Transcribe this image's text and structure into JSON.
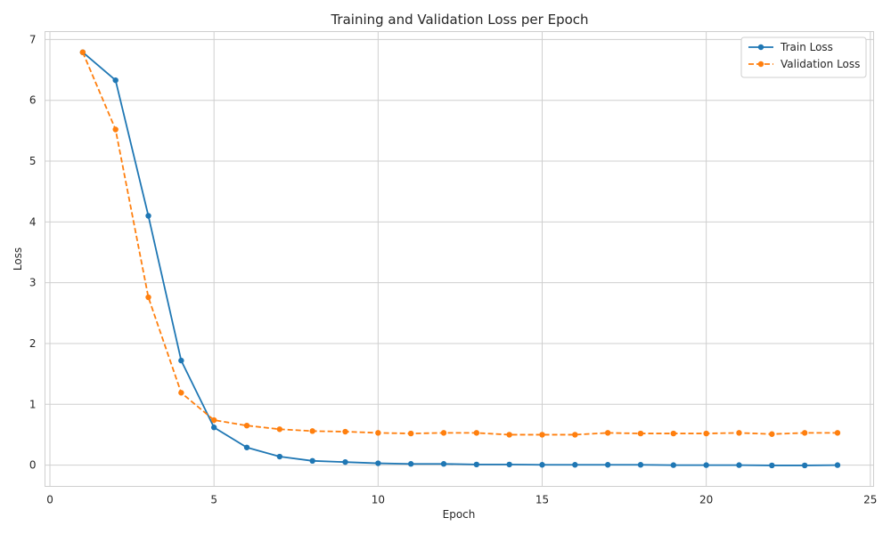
{
  "chart_data": {
    "type": "line",
    "title": "Training and Validation Loss per Epoch",
    "xlabel": "Epoch",
    "ylabel": "Loss",
    "xlim": [
      -0.15,
      25.1
    ],
    "ylim": [
      -0.35,
      7.13
    ],
    "xticks": [
      0,
      5,
      10,
      15,
      20,
      25
    ],
    "yticks": [
      0,
      1,
      2,
      3,
      4,
      5,
      6,
      7
    ],
    "grid": true,
    "legend_position": "top-right",
    "x": [
      1,
      2,
      3,
      4,
      5,
      6,
      7,
      8,
      9,
      10,
      11,
      12,
      13,
      14,
      15,
      16,
      17,
      18,
      19,
      20,
      21,
      22,
      23,
      24
    ],
    "series": [
      {
        "name": "Train Loss",
        "color": "#1f77b4",
        "style": "solid",
        "values": [
          6.79,
          6.33,
          4.1,
          1.72,
          0.62,
          0.29,
          0.14,
          0.07,
          0.05,
          0.03,
          0.02,
          0.02,
          0.01,
          0.01,
          0.005,
          0.005,
          0.005,
          0.005,
          0.0,
          0.0,
          0.0,
          -0.005,
          -0.005,
          0.0
        ]
      },
      {
        "name": "Validation Loss",
        "color": "#ff7f0e",
        "style": "dashed",
        "values": [
          6.79,
          5.52,
          2.76,
          1.19,
          0.74,
          0.65,
          0.59,
          0.56,
          0.55,
          0.53,
          0.52,
          0.53,
          0.53,
          0.5,
          0.5,
          0.5,
          0.53,
          0.52,
          0.52,
          0.52,
          0.53,
          0.51,
          0.53,
          0.53
        ]
      }
    ]
  }
}
